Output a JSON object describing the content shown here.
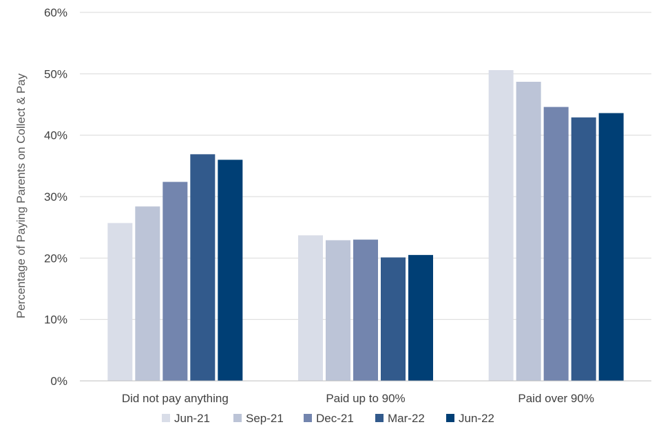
{
  "chart_data": {
    "type": "bar",
    "title": "",
    "xlabel": "",
    "ylabel": "Percentage of Paying Parents on Collect & Pay",
    "ylim": [
      0,
      60
    ],
    "yticks": [
      "0%",
      "10%",
      "20%",
      "30%",
      "40%",
      "50%",
      "60%"
    ],
    "ytick_values": [
      0,
      10,
      20,
      30,
      40,
      50,
      60
    ],
    "grid": true,
    "legend_position": "bottom",
    "categories": [
      "Did not pay anything",
      "Paid up to 90%",
      "Paid over 90%"
    ],
    "series": [
      {
        "name": "Jun-21",
        "color": "#D9DDE8",
        "values": [
          25.7,
          23.7,
          50.6
        ]
      },
      {
        "name": "Sep-21",
        "color": "#BCC4D7",
        "values": [
          28.4,
          22.9,
          48.7
        ]
      },
      {
        "name": "Dec-21",
        "color": "#7385AE",
        "values": [
          32.4,
          23.0,
          44.6
        ]
      },
      {
        "name": "Mar-22",
        "color": "#325A8C",
        "values": [
          36.9,
          20.1,
          42.9
        ]
      },
      {
        "name": "Jun-22",
        "color": "#003F75",
        "values": [
          36.0,
          20.5,
          43.6
        ]
      }
    ]
  }
}
